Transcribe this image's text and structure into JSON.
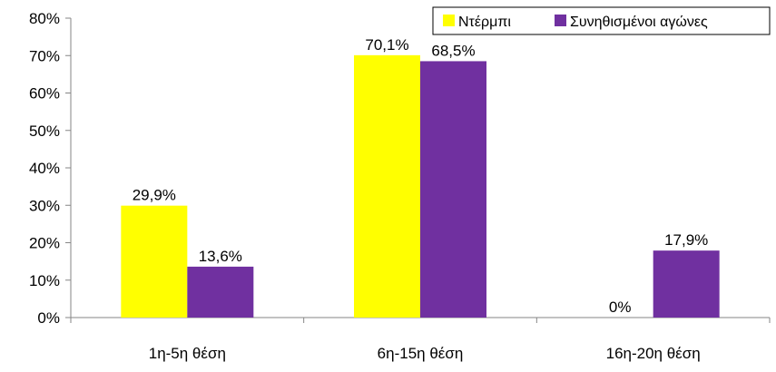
{
  "chart_data": {
    "type": "bar",
    "categories": [
      "1η-5η θέση",
      "6η-15η θέση",
      "16η-20η θέση"
    ],
    "series": [
      {
        "name": "Ντέρμπι",
        "color": "#ffff00",
        "values": [
          29.9,
          70.1,
          0
        ],
        "labels": [
          "29,9%",
          "70,1%",
          "0%"
        ]
      },
      {
        "name": "Συνηθισμένοι αγώνες",
        "color": "#7030a0",
        "values": [
          13.6,
          68.5,
          17.9
        ],
        "labels": [
          "13,6%",
          "68,5%",
          "17,9%"
        ]
      }
    ],
    "yticks": [
      "0%",
      "10%",
      "20%",
      "30%",
      "40%",
      "50%",
      "60%",
      "70%",
      "80%"
    ],
    "ylim": [
      0,
      80
    ],
    "ystep": 10,
    "grid": false,
    "legend": "top-right"
  }
}
